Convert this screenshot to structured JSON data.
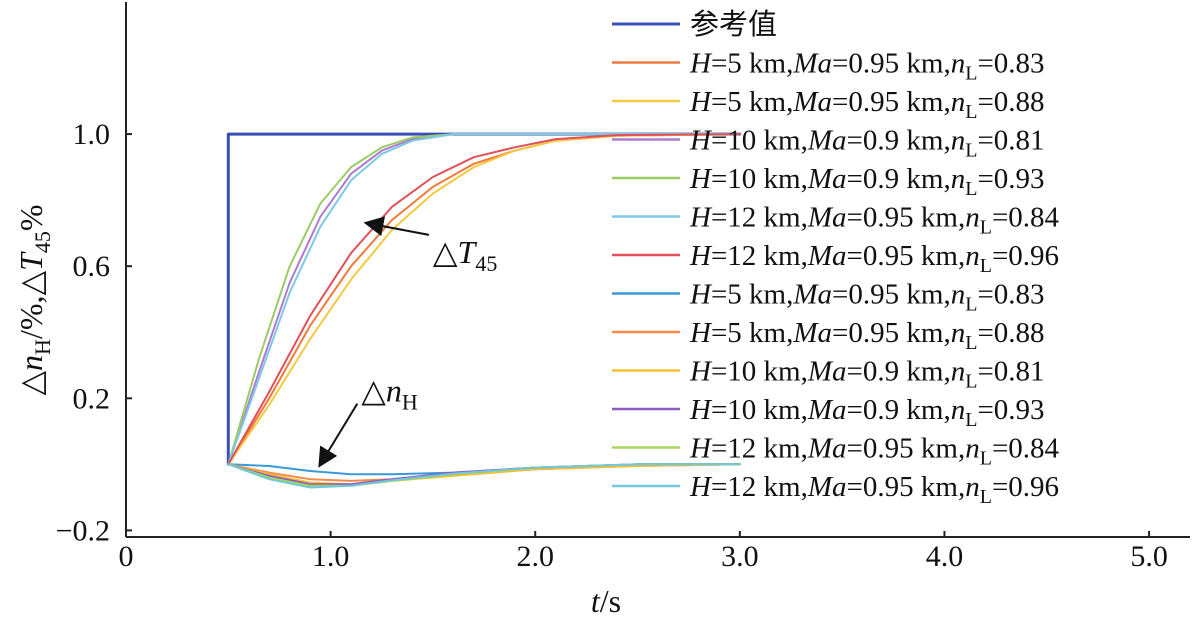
{
  "chart_data": {
    "type": "line",
    "title": "",
    "xlabel": "t/s",
    "ylabel": "△nH/%,△T45%",
    "xlim": [
      0,
      5.2
    ],
    "ylim": [
      -0.22,
      1.4
    ],
    "xticks": [
      0,
      1.0,
      2.0,
      3.0,
      4.0,
      5.0
    ],
    "xtick_labels": [
      "0",
      "1.0",
      "2.0",
      "3.0",
      "4.0",
      "5.0"
    ],
    "yticks": [
      -0.2,
      0.2,
      0.6,
      1.0
    ],
    "ytick_labels": [
      "−0.2",
      "0.2",
      "0.6",
      "1.0"
    ],
    "grid": false,
    "legend_position": "right",
    "legend": [
      "参考值",
      "H=5 km,Ma=0.95 km,nL=0.83",
      "H=5 km,Ma=0.95 km,nL=0.88",
      "H=10 km,Ma=0.9 km,nL=0.81",
      "H=10 km,Ma=0.9 km,nL=0.93",
      "H=12 km,Ma=0.95 km,nL=0.84",
      "H=12 km,Ma=0.95 km,nL=0.96",
      "H=5 km,Ma=0.95 km,nL=0.83",
      "H=5 km,Ma=0.95 km,nL=0.88",
      "H=10 km,Ma=0.9 km,nL=0.81",
      "H=10 km,Ma=0.9 km,nL=0.93",
      "H=12 km,Ma=0.95 km,nL=0.84",
      "H=12 km,Ma=0.95 km,nL=0.96"
    ],
    "legend_colors": [
      "#3a4fb5",
      "#f07a3a",
      "#f5c842",
      "#b07ad0",
      "#9ccc65",
      "#7ec8e8",
      "#e0505a",
      "#3a9ad9",
      "#f28a4a",
      "#f5c030",
      "#8e5cc0",
      "#a5d65a",
      "#70c8d8"
    ],
    "annotations": [
      {
        "text": "△T45",
        "x": 1.5,
        "y": 0.61,
        "arrow_to": [
          1.18,
          0.73
        ]
      },
      {
        "text": "△nH",
        "x": 1.15,
        "y": 0.19,
        "arrow_to": [
          0.95,
          0.0
        ]
      }
    ],
    "series": [
      {
        "name": "参考值",
        "color": "#3a4fb5",
        "x": [
          0.5,
          0.5,
          3.0
        ],
        "y": [
          0,
          1.0,
          1.0
        ]
      },
      {
        "color": "#f07a3a",
        "x": [
          0.5,
          0.7,
          0.9,
          1.1,
          1.3,
          1.5,
          1.7,
          1.9,
          2.1,
          2.4,
          3.0
        ],
        "y": [
          0,
          0.2,
          0.42,
          0.6,
          0.74,
          0.84,
          0.91,
          0.95,
          0.98,
          0.995,
          1.0
        ]
      },
      {
        "color": "#f5c842",
        "x": [
          0.5,
          0.7,
          0.9,
          1.1,
          1.3,
          1.5,
          1.7,
          1.9,
          2.1,
          2.4,
          3.0
        ],
        "y": [
          0,
          0.18,
          0.38,
          0.56,
          0.71,
          0.82,
          0.9,
          0.95,
          0.98,
          0.995,
          1.0
        ]
      },
      {
        "color": "#b07ad0",
        "x": [
          0.5,
          0.65,
          0.8,
          0.95,
          1.1,
          1.25,
          1.4,
          1.6,
          2.0,
          3.0
        ],
        "y": [
          0,
          0.28,
          0.55,
          0.75,
          0.88,
          0.95,
          0.985,
          1.0,
          1.0,
          1.0
        ]
      },
      {
        "color": "#9ccc65",
        "x": [
          0.5,
          0.65,
          0.8,
          0.95,
          1.1,
          1.25,
          1.4,
          1.6,
          2.0,
          3.0
        ],
        "y": [
          0,
          0.32,
          0.6,
          0.79,
          0.9,
          0.96,
          0.99,
          1.0,
          1.0,
          1.0
        ]
      },
      {
        "color": "#7ec8e8",
        "x": [
          0.5,
          0.65,
          0.8,
          0.95,
          1.1,
          1.25,
          1.4,
          1.6,
          2.0,
          3.0
        ],
        "y": [
          0,
          0.26,
          0.52,
          0.72,
          0.86,
          0.94,
          0.98,
          1.0,
          1.0,
          1.0
        ]
      },
      {
        "color": "#e0505a",
        "x": [
          0.5,
          0.7,
          0.9,
          1.1,
          1.3,
          1.5,
          1.7,
          1.9,
          2.1,
          2.4,
          3.0
        ],
        "y": [
          0,
          0.22,
          0.45,
          0.64,
          0.78,
          0.87,
          0.93,
          0.96,
          0.985,
          0.997,
          1.0
        ]
      },
      {
        "color": "#3a9ad9",
        "x": [
          0.5,
          0.7,
          0.9,
          1.1,
          1.3,
          1.6,
          2.0,
          2.5,
          3.0
        ],
        "y": [
          0,
          -0.005,
          -0.02,
          -0.03,
          -0.03,
          -0.025,
          -0.01,
          0,
          0
        ]
      },
      {
        "color": "#f28a4a",
        "x": [
          0.5,
          0.7,
          0.9,
          1.1,
          1.3,
          1.6,
          2.0,
          2.5,
          3.0
        ],
        "y": [
          0,
          -0.025,
          -0.045,
          -0.05,
          -0.045,
          -0.03,
          -0.015,
          -0.005,
          0
        ]
      },
      {
        "color": "#f5c030",
        "x": [
          0.5,
          0.7,
          0.9,
          1.1,
          1.3,
          1.6,
          2.0,
          2.5,
          3.0
        ],
        "y": [
          0,
          -0.03,
          -0.055,
          -0.06,
          -0.05,
          -0.035,
          -0.015,
          -0.005,
          0
        ]
      },
      {
        "color": "#8e5cc0",
        "x": [
          0.5,
          0.7,
          0.9,
          1.1,
          1.3,
          1.6,
          2.0,
          2.5,
          3.0
        ],
        "y": [
          0,
          -0.035,
          -0.06,
          -0.06,
          -0.045,
          -0.025,
          -0.01,
          0,
          0
        ]
      },
      {
        "color": "#a5d65a",
        "x": [
          0.5,
          0.7,
          0.9,
          1.1,
          1.3,
          1.6,
          2.0,
          2.5,
          3.0
        ],
        "y": [
          0,
          -0.04,
          -0.065,
          -0.065,
          -0.05,
          -0.03,
          -0.01,
          0,
          0
        ]
      },
      {
        "color": "#70c8d8",
        "x": [
          0.5,
          0.7,
          0.9,
          1.1,
          1.3,
          1.6,
          2.0,
          2.5,
          3.0
        ],
        "y": [
          0,
          -0.045,
          -0.07,
          -0.065,
          -0.048,
          -0.028,
          -0.01,
          0,
          0
        ]
      }
    ]
  }
}
